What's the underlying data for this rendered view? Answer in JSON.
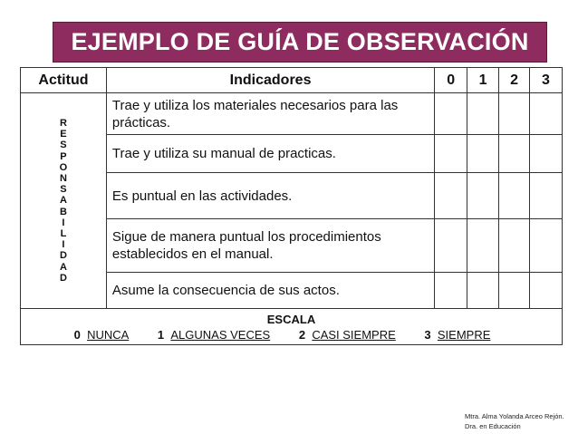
{
  "title": "EJEMPLO DE GUÍA DE OBSERVACIÓN",
  "headers": {
    "actitud": "Actitud",
    "indicadores": "Indicadores",
    "scores": [
      "0",
      "1",
      "2",
      "3"
    ]
  },
  "actitud_letters": [
    "R",
    "E",
    "S",
    "P",
    "O",
    "N",
    "S",
    "A",
    "B",
    "I",
    "L",
    "I",
    "D",
    "A",
    "D"
  ],
  "indicators": [
    "Trae y utiliza los materiales necesarios para las prácticas.",
    "Trae y utiliza su manual de practicas.",
    "Es puntual en las actividades.",
    "Sigue de manera puntual los procedimientos establecidos en el manual.",
    "Asume la consecuencia de sus actos."
  ],
  "scale": {
    "title": "ESCALA",
    "items": [
      {
        "value": "0",
        "label": "NUNCA"
      },
      {
        "value": "1",
        "label": "ALGUNAS VECES"
      },
      {
        "value": "2",
        "label": "CASI SIEMPRE"
      },
      {
        "value": "3",
        "label": "SIEMPRE"
      }
    ]
  },
  "credit": {
    "line1": "Mtra. Alma Yolanda Arceo Rejón.",
    "line2": "Dra. en Educación"
  },
  "colors": {
    "title_bg": "#8e2b5f"
  }
}
